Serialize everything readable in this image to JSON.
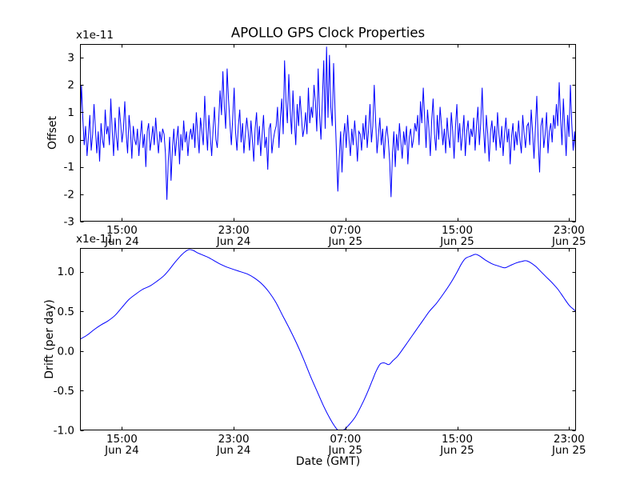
{
  "figure": {
    "title": "APOLLO GPS Clock Properties",
    "xlabel": "Date (GMT)",
    "background_color": "#ffffff",
    "frame_color": "#000000",
    "line_color": "#0000ff"
  },
  "chart_data": [
    {
      "type": "line",
      "name": "offset",
      "ylabel": "Offset",
      "scale_label": "x1e-11",
      "unit_scale": "1e-11",
      "line_color": "#0000ff",
      "smooth": false,
      "grid": false,
      "xlim": [
        0,
        35.5
      ],
      "ylim": [
        -3,
        3.5
      ],
      "x_unit": "hours from 12:00 Jun 24",
      "xticks": [
        3,
        11,
        19,
        27,
        35
      ],
      "xtick_labels": [
        [
          "15:00",
          "Jun 24"
        ],
        [
          "23:00",
          "Jun 24"
        ],
        [
          "07:00",
          "Jun 25"
        ],
        [
          "15:00",
          "Jun 25"
        ],
        [
          "23:00",
          "Jun 25"
        ]
      ],
      "yticks": [
        -3,
        -2,
        -1,
        0,
        1,
        2,
        3
      ],
      "ytick_labels": [
        "-3",
        "-2",
        "-1",
        "0",
        "1",
        "2",
        "3"
      ],
      "values": [
        0.3,
        2.0,
        0.8,
        -0.2,
        0.5,
        -0.6,
        0.1,
        0.9,
        -0.4,
        0.2,
        1.3,
        0.4,
        -0.5,
        0.3,
        -0.8,
        0.6,
        0.0,
        -0.3,
        1.1,
        0.2,
        0.5,
        -0.2,
        1.5,
        0.3,
        -0.6,
        0.8,
        0.1,
        -0.4,
        1.2,
        0.6,
        -0.1,
        0.4,
        1.4,
        0.2,
        -0.5,
        0.9,
        0.3,
        -0.7,
        0.5,
        0.0,
        -0.2,
        0.4,
        -0.6,
        0.1,
        0.7,
        -0.3,
        0.2,
        -1.0,
        0.3,
        0.6,
        -0.4,
        0.0,
        0.5,
        -0.2,
        0.8,
        0.1,
        -0.5,
        0.3,
        -0.1,
        0.4,
        0.2,
        -0.5,
        -2.2,
        -0.8,
        0.1,
        -1.5,
        -0.3,
        0.4,
        -0.6,
        0.0,
        0.5,
        -0.9,
        0.2,
        -0.4,
        0.7,
        -0.1,
        0.3,
        -0.6,
        0.1,
        0.4,
        0.0,
        0.6,
        -0.3,
        1.0,
        0.2,
        -0.5,
        0.8,
        0.3,
        -0.2,
        1.6,
        0.5,
        -0.4,
        0.9,
        0.1,
        -0.6,
        0.4,
        1.2,
        0.0,
        -0.3,
        0.7,
        1.8,
        0.9,
        2.5,
        1.2,
        0.4,
        2.6,
        1.5,
        0.6,
        -0.2,
        0.8,
        1.9,
        0.3,
        -0.4,
        0.5,
        1.1,
        -0.1,
        0.6,
        -0.5,
        0.2,
        0.8,
        0.3,
        -0.4,
        0.7,
        0.0,
        -0.8,
        0.4,
        1.0,
        -0.2,
        0.5,
        -0.6,
        0.2,
        0.9,
        -0.3,
        0.1,
        -1.1,
        0.4,
        0.6,
        -0.5,
        0.0,
        0.3,
        0.5,
        1.2,
        -0.3,
        0.8,
        1.5,
        0.2,
        2.9,
        1.4,
        0.6,
        2.4,
        1.1,
        0.2,
        1.8,
        0.7,
        -0.2,
        1.3,
        0.5,
        1.6,
        0.9,
        0.1,
        0.4,
        1.0,
        0.2,
        1.9,
        0.6,
        1.2,
        0.8,
        2.0,
        1.4,
        0.3,
        2.6,
        0.9,
        0.0,
        1.5,
        2.9,
        0.4,
        3.4,
        0.8,
        3.1,
        1.2,
        0.5,
        2.8,
        1.1,
        -0.4,
        -1.9,
        -0.7,
        0.3,
        -1.2,
        0.1,
        0.6,
        -0.3,
        0.9,
        0.0,
        -0.6,
        0.4,
        -0.2,
        0.7,
        0.1,
        -0.8,
        0.3,
        0.2,
        -0.4,
        0.6,
        0.0,
        0.9,
        -0.3,
        0.4,
        1.3,
        -0.1,
        0.5,
        2.0,
        0.7,
        -0.5,
        0.2,
        0.8,
        -0.2,
        0.4,
        -0.7,
        0.1,
        0.5,
        0.0,
        -0.8,
        -2.1,
        -0.5,
        0.3,
        -1.0,
        0.2,
        -0.4,
        0.6,
        -0.1,
        -0.7,
        0.3,
        -0.2,
        0.5,
        -0.9,
        0.1,
        0.4,
        -0.3,
        0.0,
        0.6,
        0.3,
        0.9,
        -0.2,
        1.4,
        0.6,
        1.9,
        0.8,
        -0.3,
        1.1,
        0.4,
        -0.6,
        0.7,
        1.5,
        0.2,
        -0.4,
        0.9,
        0.0,
        1.2,
        0.5,
        -0.2,
        0.4,
        -0.5,
        0.8,
        0.1,
        -0.3,
        1.0,
        0.3,
        -0.7,
        0.5,
        1.3,
        -0.1,
        0.6,
        -0.4,
        0.2,
        0.9,
        -0.6,
        0.3,
        0.7,
        -0.2,
        0.4,
        0.1,
        0.8,
        -0.4,
        0.5,
        1.2,
        -0.2,
        0.6,
        1.9,
        0.4,
        -0.5,
        0.9,
        0.2,
        -0.8,
        0.3,
        0.7,
        -0.1,
        0.5,
        -0.4,
        1.0,
        0.2,
        -0.3,
        0.5,
        -0.6,
        0.2,
        0.8,
        -0.1,
        0.4,
        -0.9,
        0.1,
        0.6,
        -0.4,
        0.3,
        -0.2,
        0.7,
        0.0,
        -0.5,
        0.9,
        0.2,
        -0.3,
        0.5,
        0.6,
        -0.2,
        1.1,
        0.3,
        -0.7,
        0.4,
        1.6,
        0.0,
        -1.2,
        0.5,
        0.8,
        -0.3,
        0.2,
        1.0,
        -0.5,
        0.3,
        0.6,
        -0.1,
        0.9,
        0.4,
        1.3,
        0.5,
        2.1,
        0.8,
        -0.2,
        1.5,
        0.4,
        -0.6,
        0.9,
        0.1,
        2.0,
        0.6,
        -0.4,
        0.3,
        -0.7
      ]
    },
    {
      "type": "line",
      "name": "drift",
      "ylabel": "Drift (per day)",
      "scale_label": "x1e-11",
      "unit_scale": "1e-11",
      "line_color": "#0000ff",
      "smooth": true,
      "grid": false,
      "xlim": [
        0,
        35.5
      ],
      "ylim": [
        -1.0,
        1.3
      ],
      "x_unit": "hours from 12:00 Jun 24",
      "xticks": [
        3,
        11,
        19,
        27,
        35
      ],
      "xtick_labels": [
        [
          "15:00",
          "Jun 24"
        ],
        [
          "23:00",
          "Jun 24"
        ],
        [
          "07:00",
          "Jun 25"
        ],
        [
          "15:00",
          "Jun 25"
        ],
        [
          "23:00",
          "Jun 25"
        ]
      ],
      "yticks": [
        -1.0,
        -0.5,
        0.0,
        0.5,
        1.0
      ],
      "ytick_labels": [
        "-1.0",
        "-0.5",
        "0.0",
        "0.5",
        "1.0"
      ],
      "points": [
        [
          0,
          0.15
        ],
        [
          0.5,
          0.2
        ],
        [
          1,
          0.27
        ],
        [
          1.5,
          0.33
        ],
        [
          2,
          0.38
        ],
        [
          2.5,
          0.45
        ],
        [
          3,
          0.55
        ],
        [
          3.5,
          0.65
        ],
        [
          4,
          0.72
        ],
        [
          4.5,
          0.78
        ],
        [
          5,
          0.82
        ],
        [
          5.5,
          0.88
        ],
        [
          6,
          0.95
        ],
        [
          6.4,
          1.03
        ],
        [
          6.8,
          1.12
        ],
        [
          7.2,
          1.2
        ],
        [
          7.5,
          1.25
        ],
        [
          7.8,
          1.28
        ],
        [
          8.1,
          1.27
        ],
        [
          8.4,
          1.24
        ],
        [
          8.8,
          1.21
        ],
        [
          9.2,
          1.18
        ],
        [
          9.6,
          1.14
        ],
        [
          10,
          1.1
        ],
        [
          10.5,
          1.06
        ],
        [
          11,
          1.03
        ],
        [
          11.5,
          1.0
        ],
        [
          12,
          0.97
        ],
        [
          12.5,
          0.92
        ],
        [
          13,
          0.85
        ],
        [
          13.5,
          0.75
        ],
        [
          14,
          0.62
        ],
        [
          14.5,
          0.45
        ],
        [
          15,
          0.28
        ],
        [
          15.5,
          0.1
        ],
        [
          16,
          -0.1
        ],
        [
          16.5,
          -0.32
        ],
        [
          17,
          -0.52
        ],
        [
          17.4,
          -0.68
        ],
        [
          17.8,
          -0.82
        ],
        [
          18.2,
          -0.94
        ],
        [
          18.5,
          -1.0
        ],
        [
          18.9,
          -0.99
        ],
        [
          19.3,
          -0.92
        ],
        [
          19.7,
          -0.83
        ],
        [
          20.1,
          -0.7
        ],
        [
          20.5,
          -0.55
        ],
        [
          20.9,
          -0.38
        ],
        [
          21.2,
          -0.25
        ],
        [
          21.5,
          -0.16
        ],
        [
          21.8,
          -0.15
        ],
        [
          22.1,
          -0.17
        ],
        [
          22.4,
          -0.12
        ],
        [
          22.7,
          -0.07
        ],
        [
          23,
          0
        ],
        [
          23.4,
          0.1
        ],
        [
          23.8,
          0.2
        ],
        [
          24.2,
          0.3
        ],
        [
          24.6,
          0.4
        ],
        [
          25,
          0.5
        ],
        [
          25.5,
          0.6
        ],
        [
          26,
          0.72
        ],
        [
          26.5,
          0.85
        ],
        [
          27,
          1
        ],
        [
          27.3,
          1.1
        ],
        [
          27.6,
          1.17
        ],
        [
          28,
          1.2
        ],
        [
          28.3,
          1.22
        ],
        [
          28.6,
          1.2
        ],
        [
          29,
          1.15
        ],
        [
          29.5,
          1.1
        ],
        [
          30,
          1.07
        ],
        [
          30.4,
          1.05
        ],
        [
          30.8,
          1.08
        ],
        [
          31.2,
          1.11
        ],
        [
          31.6,
          1.13
        ],
        [
          31.9,
          1.14
        ],
        [
          32.2,
          1.12
        ],
        [
          32.6,
          1.07
        ],
        [
          33,
          1
        ],
        [
          33.4,
          0.93
        ],
        [
          33.8,
          0.86
        ],
        [
          34.2,
          0.78
        ],
        [
          34.6,
          0.68
        ],
        [
          35,
          0.58
        ],
        [
          35.3,
          0.53
        ],
        [
          35.5,
          0.5
        ]
      ]
    }
  ]
}
